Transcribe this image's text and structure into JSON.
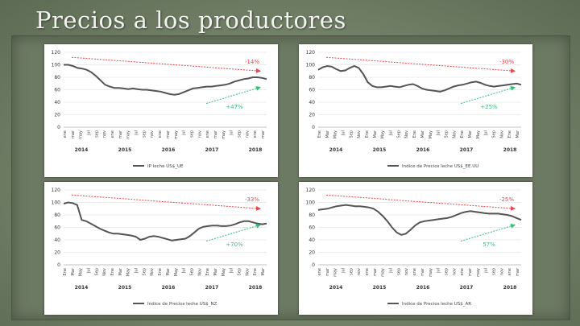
{
  "slide": {
    "title": "Precios a los productores"
  },
  "colors": {
    "series": "#555555",
    "down": "#e8464a",
    "up": "#2fbf7a",
    "grid": "#d9d9d9"
  },
  "chart_data": [
    {
      "type": "line",
      "yticks": [
        0,
        20,
        40,
        60,
        80,
        100,
        120
      ],
      "ylim": [
        0,
        120
      ],
      "months": [
        "ene",
        "mar",
        "may",
        "jul",
        "sep",
        "nov",
        "ene",
        "mar",
        "may",
        "jul",
        "sep",
        "nov",
        "ene",
        "mar",
        "may",
        "jul",
        "sep",
        "nov",
        "ene",
        "mar",
        "may",
        "jul",
        "sep",
        "nov",
        "ene",
        "mar"
      ],
      "years": [
        "2014",
        "2015",
        "2016",
        "2017",
        "2018"
      ],
      "legend": "IP leche US$_UE",
      "series_values": [
        100,
        100,
        98,
        95,
        94,
        92,
        88,
        82,
        75,
        68,
        65,
        63,
        63,
        62,
        61,
        62,
        61,
        60,
        60,
        59,
        58,
        57,
        55,
        53,
        52,
        53,
        56,
        59,
        62,
        63,
        64,
        65,
        65,
        66,
        67,
        68,
        70,
        73,
        75,
        77,
        78,
        80,
        80,
        79,
        77
      ],
      "annotations": {
        "down_label": "-14%",
        "up_label": "+47%"
      }
    },
    {
      "type": "line",
      "yticks": [
        0,
        20,
        40,
        60,
        80,
        100,
        120
      ],
      "ylim": [
        0,
        120
      ],
      "months": [
        "Ene",
        "Mar",
        "May",
        "Jul",
        "Sep",
        "Nov",
        "Ene",
        "Mar",
        "May",
        "Jul",
        "Sep",
        "Nov",
        "Ene",
        "Mar",
        "May",
        "Jul",
        "Sep",
        "Nov",
        "Ene",
        "Mar",
        "May",
        "Jul",
        "Sep",
        "Nov",
        "Ene",
        "Mar"
      ],
      "years": [
        "2014",
        "2015",
        "2016",
        "2017",
        "2018"
      ],
      "legend": "Indice de Precios leche US$_EE.UU",
      "series_values": [
        92,
        96,
        98,
        97,
        93,
        90,
        91,
        95,
        98,
        95,
        85,
        72,
        66,
        64,
        64,
        65,
        66,
        65,
        64,
        66,
        68,
        69,
        66,
        62,
        60,
        59,
        58,
        57,
        59,
        62,
        65,
        67,
        68,
        70,
        72,
        73,
        71,
        68,
        66,
        65,
        66,
        67,
        68,
        69,
        70,
        68
      ],
      "annotations": {
        "down_label": "-30%",
        "up_label": "+25%"
      }
    },
    {
      "type": "line",
      "yticks": [
        0,
        20,
        40,
        60,
        80,
        100,
        120
      ],
      "ylim": [
        0,
        120
      ],
      "months": [
        "Ene",
        "Mar",
        "May",
        "Jul",
        "Sep",
        "Nov",
        "Ene",
        "Mar",
        "May",
        "Jul",
        "Sep",
        "Nov",
        "Ene",
        "Mar",
        "May",
        "Jul",
        "Sep",
        "Nov",
        "Ene",
        "Mar",
        "May",
        "Jul",
        "Sep",
        "Nov",
        "Ene",
        "Mar"
      ],
      "years": [
        "2014",
        "2015",
        "2016",
        "2017",
        "2018"
      ],
      "legend": "Indice de Precios leche US$_NZ",
      "series_values": [
        98,
        100,
        99,
        96,
        72,
        70,
        66,
        62,
        58,
        55,
        52,
        50,
        50,
        49,
        48,
        47,
        45,
        40,
        42,
        45,
        46,
        45,
        43,
        41,
        39,
        40,
        41,
        42,
        46,
        52,
        58,
        61,
        62,
        63,
        63,
        62,
        62,
        63,
        65,
        68,
        70,
        70,
        68,
        66,
        65,
        66
      ],
      "annotations": {
        "down_label": "-33%",
        "up_label": "+70%"
      }
    },
    {
      "type": "line",
      "yticks": [
        0,
        20,
        40,
        60,
        80,
        100,
        120
      ],
      "ylim": [
        0,
        120
      ],
      "months": [
        "ene",
        "mar",
        "may",
        "jul",
        "sep",
        "nov",
        "ene",
        "mar",
        "may",
        "jul",
        "sep",
        "nov",
        "ene",
        "mar",
        "may",
        "jul",
        "sep",
        "nov",
        "ene",
        "mar",
        "may",
        "jul",
        "sep",
        "nov",
        "ene",
        "mar"
      ],
      "years": [
        "2014",
        "2015",
        "2016",
        "2017",
        "2018"
      ],
      "legend": "Indice de Precios leche US$_AR",
      "series_values": [
        88,
        89,
        90,
        92,
        94,
        95,
        96,
        95,
        94,
        94,
        93,
        92,
        90,
        85,
        78,
        70,
        60,
        52,
        48,
        50,
        56,
        63,
        68,
        70,
        71,
        72,
        73,
        74,
        75,
        77,
        80,
        83,
        85,
        86,
        85,
        84,
        83,
        82,
        82,
        82,
        81,
        80,
        78,
        75,
        72
      ],
      "annotations": {
        "down_label": "-25%",
        "up_label": "57%"
      }
    }
  ]
}
